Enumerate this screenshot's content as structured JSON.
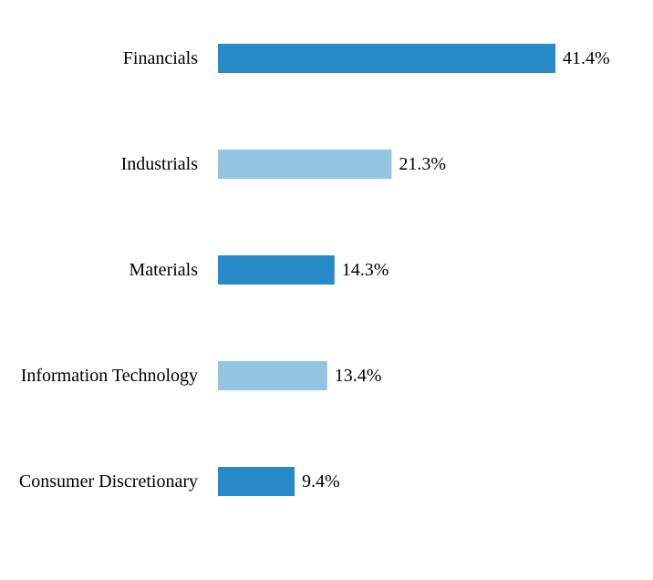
{
  "chart_data": {
    "type": "bar",
    "orientation": "horizontal",
    "categories": [
      "Financials",
      "Industrials",
      "Materials",
      "Information Technology",
      "Consumer Discretionary"
    ],
    "values": [
      41.4,
      21.3,
      14.3,
      13.4,
      9.4
    ],
    "value_labels": [
      "41.4%",
      "21.3%",
      "14.3%",
      "13.4%",
      "9.4%"
    ],
    "unit": "%",
    "title": "",
    "xlabel": "",
    "ylabel": "",
    "xlim": [
      0,
      41.4
    ],
    "grid": false,
    "legend": "none",
    "colors": [
      "#2689c8",
      "#93c4e2",
      "#2689c8",
      "#93c4e2",
      "#2689c8"
    ]
  }
}
